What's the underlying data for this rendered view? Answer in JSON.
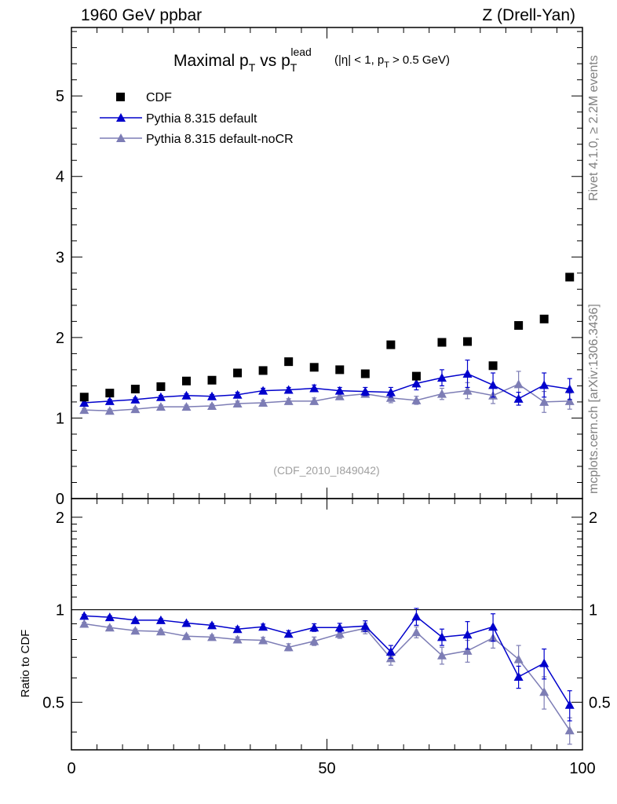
{
  "header": {
    "left": "1960 GeV ppbar",
    "right": "Z (Drell-Yan)"
  },
  "side_labels": {
    "rivet": "Rivet 4.1.0, ≥ 2.2M events",
    "mcplots": "mcplots.cern.ch [arXiv:1306.3436]"
  },
  "chart_data": [
    {
      "type": "scatter",
      "panel": "main",
      "title": {
        "main": "Maximal p",
        "sub_T": "T",
        "vs": "vs p",
        "sup_lead": "lead",
        "cut_open": "(|η| < 1, p",
        "cut_close": "> 0.5 GeV)"
      },
      "watermark": "(CDF_2010_I849042)",
      "xlabel": "",
      "ylabel": "",
      "xlim": [
        0,
        100
      ],
      "ylim": [
        0,
        5.85
      ],
      "y_ticks": [
        {
          "v": 0,
          "label": "0"
        },
        {
          "v": 1,
          "label": "1"
        },
        {
          "v": 2,
          "label": "2"
        },
        {
          "v": 3,
          "label": "3"
        },
        {
          "v": 4,
          "label": "4"
        },
        {
          "v": 5,
          "label": "5"
        }
      ],
      "x": [
        2.5,
        7.5,
        12.5,
        17.5,
        22.5,
        27.5,
        32.5,
        37.5,
        42.5,
        47.5,
        52.5,
        57.5,
        62.5,
        67.5,
        72.5,
        77.5,
        82.5,
        87.5,
        92.5,
        97.5
      ],
      "series": [
        {
          "name": "CDF",
          "marker": "square",
          "color": "#000000",
          "values": [
            1.26,
            1.31,
            1.36,
            1.39,
            1.46,
            1.47,
            1.56,
            1.59,
            1.7,
            1.63,
            1.6,
            1.55,
            1.91,
            1.52,
            1.94,
            1.95,
            1.65,
            2.15,
            2.23,
            2.75
          ],
          "errors": [
            0,
            0,
            0,
            0,
            0,
            0,
            0,
            0,
            0,
            0,
            0,
            0,
            0,
            0,
            0,
            0,
            0,
            0,
            0,
            0
          ]
        },
        {
          "name": "Pythia 8.315 default",
          "marker": "triangle",
          "color": "#0000cc",
          "values": [
            1.19,
            1.21,
            1.23,
            1.26,
            1.28,
            1.27,
            1.29,
            1.34,
            1.35,
            1.37,
            1.34,
            1.33,
            1.32,
            1.43,
            1.5,
            1.55,
            1.41,
            1.24,
            1.41,
            1.36
          ],
          "errors": [
            0.02,
            0.02,
            0.02,
            0.02,
            0.02,
            0.02,
            0.03,
            0.03,
            0.03,
            0.04,
            0.04,
            0.05,
            0.06,
            0.08,
            0.1,
            0.17,
            0.15,
            0.08,
            0.15,
            0.13
          ]
        },
        {
          "name": "Pythia 8.315 default-noCR",
          "marker": "triangle",
          "color": "#7d7db5",
          "values": [
            1.1,
            1.09,
            1.11,
            1.14,
            1.14,
            1.15,
            1.18,
            1.19,
            1.21,
            1.21,
            1.27,
            1.3,
            1.25,
            1.22,
            1.3,
            1.34,
            1.28,
            1.42,
            1.2,
            1.21
          ],
          "errors": [
            0.02,
            0.02,
            0.02,
            0.02,
            0.02,
            0.02,
            0.03,
            0.03,
            0.03,
            0.04,
            0.04,
            0.04,
            0.06,
            0.05,
            0.07,
            0.1,
            0.1,
            0.16,
            0.13,
            0.1
          ]
        }
      ]
    },
    {
      "type": "scatter",
      "panel": "ratio",
      "ylabel": "Ratio to CDF",
      "xlim": [
        0,
        100
      ],
      "ylim": [
        0.35,
        2.3
      ],
      "reference_line": 1,
      "x_ticks": [
        {
          "v": 0,
          "label": "0"
        },
        {
          "v": 50,
          "label": "50"
        },
        {
          "v": 100,
          "label": "100"
        }
      ],
      "y_ticks": [
        {
          "v": 0.5,
          "label": "0.5"
        },
        {
          "v": 1,
          "label": "1"
        },
        {
          "v": 2,
          "label": "2"
        }
      ],
      "x": [
        2.5,
        7.5,
        12.5,
        17.5,
        22.5,
        27.5,
        32.5,
        37.5,
        42.5,
        47.5,
        52.5,
        57.5,
        62.5,
        67.5,
        72.5,
        77.5,
        82.5,
        87.5,
        92.5,
        97.5
      ],
      "series": [
        {
          "name": "Pythia 8.315 default",
          "marker": "triangle",
          "color": "#0000cc",
          "values": [
            0.955,
            0.945,
            0.925,
            0.925,
            0.905,
            0.89,
            0.865,
            0.88,
            0.835,
            0.875,
            0.875,
            0.885,
            0.73,
            0.95,
            0.815,
            0.83,
            0.88,
            0.605,
            0.67,
            0.49
          ],
          "errors": [
            0.01,
            0.01,
            0.01,
            0.01,
            0.01,
            0.012,
            0.015,
            0.018,
            0.02,
            0.025,
            0.028,
            0.035,
            0.035,
            0.06,
            0.05,
            0.085,
            0.09,
            0.05,
            0.075,
            0.055
          ]
        },
        {
          "name": "Pythia 8.315 default-noCR",
          "marker": "triangle",
          "color": "#7d7db5",
          "values": [
            0.9,
            0.875,
            0.855,
            0.85,
            0.82,
            0.815,
            0.8,
            0.795,
            0.755,
            0.79,
            0.835,
            0.87,
            0.695,
            0.845,
            0.71,
            0.735,
            0.81,
            0.69,
            0.54,
            0.405
          ],
          "errors": [
            0.01,
            0.01,
            0.01,
            0.01,
            0.01,
            0.012,
            0.015,
            0.018,
            0.02,
            0.025,
            0.028,
            0.035,
            0.035,
            0.035,
            0.045,
            0.06,
            0.06,
            0.075,
            0.065,
            0.04
          ]
        }
      ]
    }
  ]
}
